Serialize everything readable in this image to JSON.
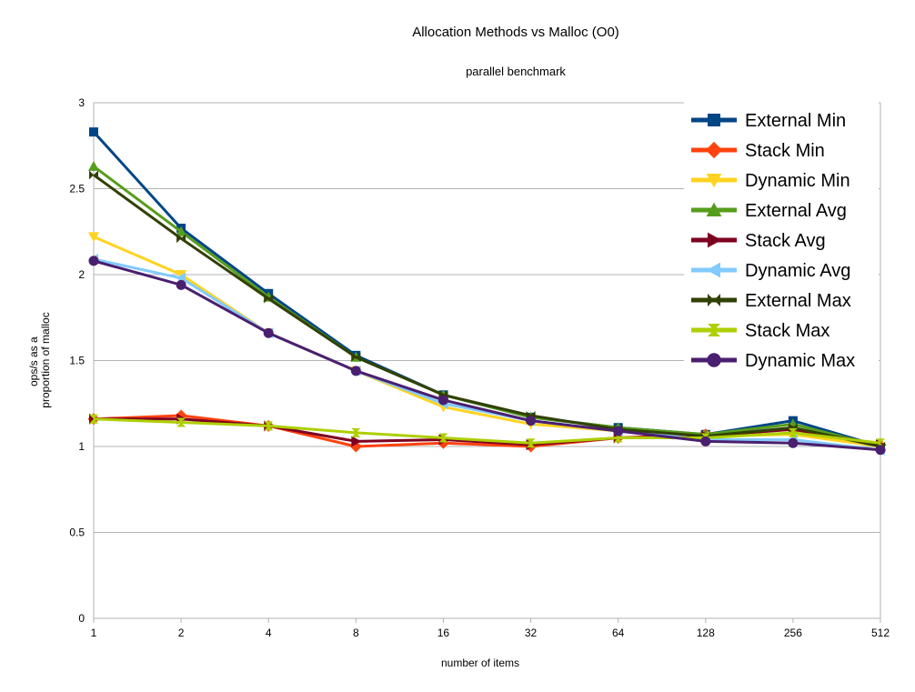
{
  "chart_data": {
    "type": "line",
    "title": "Allocation Methods vs Malloc (O0)",
    "subtitle": "parallel benchmark",
    "xlabel": "number of items",
    "ylabel_line1": "ops/s as a",
    "ylabel_line2": "proportion of malloc",
    "categories": [
      "1",
      "2",
      "4",
      "8",
      "16",
      "32",
      "64",
      "128",
      "256",
      "512"
    ],
    "ylim": [
      0,
      3
    ],
    "y_ticks": [
      0,
      0.5,
      1,
      1.5,
      2,
      2.5,
      3
    ],
    "y_tick_labels": [
      "0",
      "0.5",
      "1",
      "1.5",
      "2",
      "2.5",
      "3"
    ],
    "grid": true,
    "legend_position": "top-right",
    "series": [
      {
        "name": "External Min",
        "color": "#004586",
        "marker": "square",
        "values": [
          2.83,
          2.27,
          1.89,
          1.53,
          1.3,
          1.17,
          1.11,
          1.07,
          1.15,
          1.0
        ]
      },
      {
        "name": "Stack Min",
        "color": "#ff420e",
        "marker": "diamond",
        "values": [
          1.16,
          1.18,
          1.12,
          1.0,
          1.02,
          1.0,
          1.05,
          1.07,
          1.1,
          1.01
        ]
      },
      {
        "name": "Dynamic Min",
        "color": "#ffd320",
        "marker": "triangle-down",
        "values": [
          2.22,
          2.0,
          1.66,
          1.44,
          1.23,
          1.13,
          1.09,
          1.06,
          1.07,
          1.0
        ]
      },
      {
        "name": "External Avg",
        "color": "#579d1c",
        "marker": "triangle-up",
        "values": [
          2.63,
          2.25,
          1.87,
          1.52,
          1.3,
          1.17,
          1.11,
          1.07,
          1.13,
          1.0
        ]
      },
      {
        "name": "Stack Avg",
        "color": "#7e0021",
        "marker": "triangle-right",
        "values": [
          1.16,
          1.16,
          1.12,
          1.03,
          1.04,
          1.01,
          1.05,
          1.06,
          1.1,
          1.01
        ]
      },
      {
        "name": "Dynamic Avg",
        "color": "#83caff",
        "marker": "triangle-left",
        "values": [
          2.09,
          1.98,
          1.66,
          1.44,
          1.25,
          1.15,
          1.09,
          1.04,
          1.04,
          0.98
        ]
      },
      {
        "name": "External Max",
        "color": "#314004",
        "marker": "bowtie",
        "values": [
          2.58,
          2.21,
          1.86,
          1.52,
          1.3,
          1.18,
          1.1,
          1.06,
          1.11,
          1.0
        ]
      },
      {
        "name": "Stack Max",
        "color": "#aecf00",
        "marker": "hourglass",
        "values": [
          1.16,
          1.14,
          1.12,
          1.08,
          1.05,
          1.02,
          1.05,
          1.05,
          1.08,
          1.02
        ]
      },
      {
        "name": "Dynamic Max",
        "color": "#4b1f6f",
        "marker": "circle",
        "values": [
          2.08,
          1.94,
          1.66,
          1.44,
          1.27,
          1.15,
          1.09,
          1.03,
          1.02,
          0.98
        ]
      }
    ]
  }
}
